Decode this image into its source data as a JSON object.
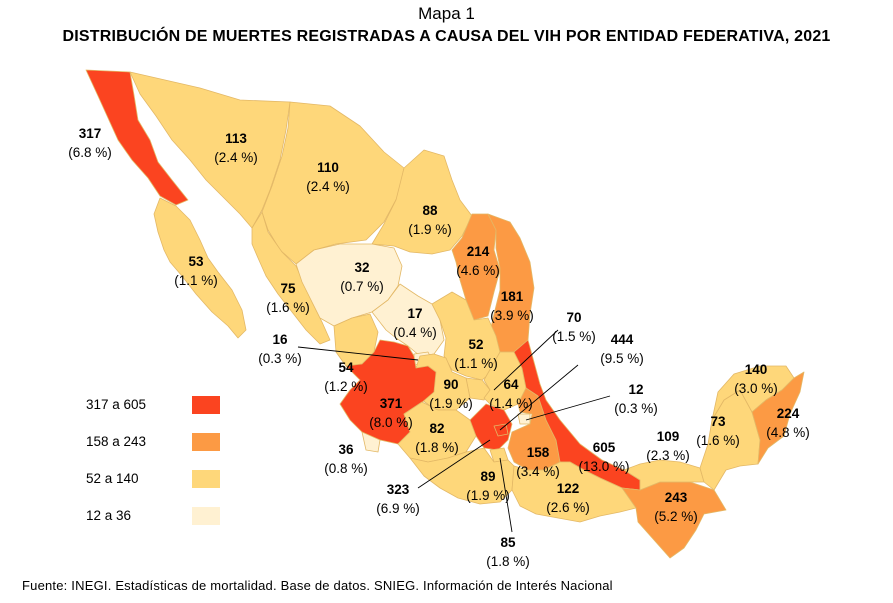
{
  "map_label": "Mapa 1",
  "title": "Distribución de muertes registradas a causa del VIH por entidad federativa, 2021",
  "title_display": "DISTRIBUCIÓN DE MUERTES REGISTRADAS A CAUSA DEL VIH POR ENTIDAD FEDERATIVA, 2021",
  "colors": {
    "c1": "#fb4420",
    "c2": "#fc9a44",
    "c3": "#fed77a",
    "c4": "#fff1d2"
  },
  "legend": [
    {
      "label": "317 a 605",
      "color": "#fb4420"
    },
    {
      "label": "158 a 243",
      "color": "#fc9a44"
    },
    {
      "label": "52 a 140",
      "color": "#fed77a"
    },
    {
      "label": "12 a 36",
      "color": "#fff1d2"
    }
  ],
  "states": [
    {
      "id": "bc",
      "value": "317",
      "pct": "(6.8 %)",
      "class": "c1"
    },
    {
      "id": "bcs",
      "value": "53",
      "pct": "(1.1 %)",
      "class": "c3"
    },
    {
      "id": "son",
      "value": "113",
      "pct": "(2.4 %)",
      "class": "c3"
    },
    {
      "id": "chih",
      "value": "110",
      "pct": "(2.4 %)",
      "class": "c3"
    },
    {
      "id": "coah",
      "value": "88",
      "pct": "(1.9 %)",
      "class": "c3"
    },
    {
      "id": "nl",
      "value": "214",
      "pct": "(4.6 %)",
      "class": "c2"
    },
    {
      "id": "tamps",
      "value": "181",
      "pct": "(3.9 %)",
      "class": "c2"
    },
    {
      "id": "sin",
      "value": "75",
      "pct": "(1.6 %)",
      "class": "c3"
    },
    {
      "id": "dgo",
      "value": "32",
      "pct": "(0.7 %)",
      "class": "c4"
    },
    {
      "id": "zac",
      "value": "17",
      "pct": "(0.4 %)",
      "class": "c4"
    },
    {
      "id": "ags",
      "value": "16",
      "pct": "(0.3 %)",
      "class": "c4"
    },
    {
      "id": "nay",
      "value": "54",
      "pct": "(1.2 %)",
      "class": "c3"
    },
    {
      "id": "slp",
      "value": "52",
      "pct": "(1.1 %)",
      "class": "c3"
    },
    {
      "id": "qro",
      "value": "70",
      "pct": "(1.5 %)",
      "class": "c3"
    },
    {
      "id": "cdmx",
      "value": "444",
      "pct": "(9.5 %)",
      "class": "c1"
    },
    {
      "id": "tlax",
      "value": "12",
      "pct": "(0.3 %)",
      "class": "c4"
    },
    {
      "id": "gto",
      "value": "90",
      "pct": "(1.9 %)",
      "class": "c3"
    },
    {
      "id": "hgo",
      "value": "64",
      "pct": "(1.4 %)",
      "class": "c3"
    },
    {
      "id": "jal",
      "value": "371",
      "pct": "(8.0 %)",
      "class": "c1"
    },
    {
      "id": "col",
      "value": "36",
      "pct": "(0.8 %)",
      "class": "c4"
    },
    {
      "id": "mich",
      "value": "82",
      "pct": "(1.8 %)",
      "class": "c3"
    },
    {
      "id": "pue",
      "value": "158",
      "pct": "(3.4 %)",
      "class": "c2"
    },
    {
      "id": "ver",
      "value": "605",
      "pct": "(13.0 %)",
      "class": "c1"
    },
    {
      "id": "mex",
      "value": "323",
      "pct": "(6.9 %)",
      "class": "c1"
    },
    {
      "id": "mor",
      "value": "85",
      "pct": "(1.8 %)",
      "class": "c3"
    },
    {
      "id": "gro",
      "value": "89",
      "pct": "(1.9 %)",
      "class": "c3"
    },
    {
      "id": "oax",
      "value": "122",
      "pct": "(2.6 %)",
      "class": "c3"
    },
    {
      "id": "chis",
      "value": "243",
      "pct": "(5.2 %)",
      "class": "c2"
    },
    {
      "id": "tab",
      "value": "109",
      "pct": "(2.3 %)",
      "class": "c3"
    },
    {
      "id": "camp",
      "value": "73",
      "pct": "(1.6 %)",
      "class": "c3"
    },
    {
      "id": "yuc",
      "value": "140",
      "pct": "(3.0 %)",
      "class": "c3"
    },
    {
      "id": "qroo",
      "value": "224",
      "pct": "(4.8 %)",
      "class": "c2"
    }
  ],
  "source": "Fuente: INEGI. Estadísticas de mortalidad. Base de datos. SNIEG. Información de Interés Nacional"
}
